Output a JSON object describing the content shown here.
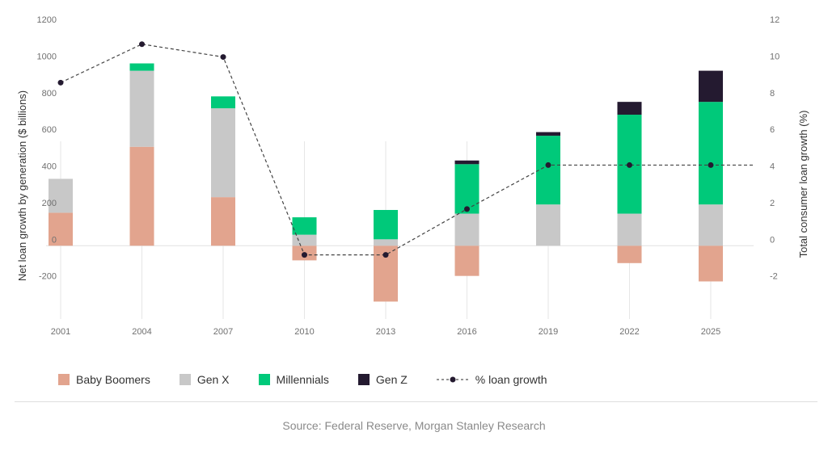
{
  "chart_data": {
    "type": "bar",
    "stacked": true,
    "categories": [
      "2001",
      "2004",
      "2007",
      "2010",
      "2013",
      "2016",
      "2019",
      "2022",
      "2025"
    ],
    "series": [
      {
        "name": "Baby Boomers",
        "color": "#e2a48e",
        "values": [
          180,
          540,
          265,
          -80,
          -305,
          -165,
          0,
          -95,
          -195
        ]
      },
      {
        "name": "Gen X",
        "color": "#c8c8c8",
        "values": [
          185,
          415,
          485,
          60,
          35,
          175,
          225,
          175,
          225
        ]
      },
      {
        "name": "Millennials",
        "color": "#00c97a",
        "values": [
          0,
          40,
          65,
          95,
          160,
          270,
          375,
          540,
          560
        ]
      },
      {
        "name": "Gen Z",
        "color": "#241a30",
        "values": [
          0,
          0,
          0,
          0,
          0,
          20,
          20,
          70,
          170
        ]
      }
    ],
    "line_series": {
      "name": "% loan growth",
      "axis": "right",
      "color": "#241a30",
      "values": [
        8.9,
        11.0,
        10.3,
        -0.5,
        -0.5,
        2.0,
        4.4,
        4.4,
        4.4
      ],
      "extends_right": true
    },
    "title": "",
    "ylabel": "Net loan growth by generation ($ billions)",
    "y2label": "Total consumer loan growth (%)",
    "ylim": [
      -400,
      1200
    ],
    "y2lim": [
      -4,
      12
    ],
    "y_ticks": [
      "-200",
      "0",
      "200",
      "400",
      "600",
      "800",
      "1000",
      "1200"
    ],
    "y_tick_values": [
      -200,
      0,
      200,
      400,
      600,
      800,
      1000,
      1200
    ],
    "y2_ticks": [
      "-2",
      "0",
      "2",
      "4",
      "6",
      "8",
      "10",
      "12"
    ],
    "y2_tick_values": [
      -2,
      0,
      2,
      4,
      6,
      8,
      10,
      12
    ],
    "grid": "vertical",
    "legend_position": "bottom-left"
  },
  "legend": {
    "baby_boomers": "Baby Boomers",
    "gen_x": "Gen X",
    "millennials": "Millennials",
    "gen_z": "Gen Z",
    "loan_growth": "% loan growth"
  },
  "source": "Source: Federal Reserve, Morgan Stanley Research"
}
